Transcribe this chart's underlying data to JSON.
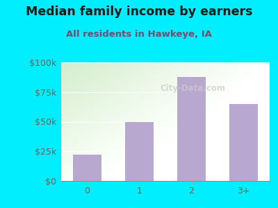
{
  "title": "Median family income by earners",
  "subtitle": "All residents in Hawkeye, IA",
  "categories": [
    "0",
    "1",
    "2",
    "3+"
  ],
  "values": [
    22000,
    50000,
    88000,
    65000
  ],
  "bar_color": "#b8a8d0",
  "background_outer": "#00eeff",
  "title_color": "#1a1a1a",
  "subtitle_color": "#7a4a6a",
  "tick_label_color": "#7a5a4a",
  "ylim": [
    0,
    100000
  ],
  "yticks": [
    0,
    25000,
    50000,
    75000,
    100000
  ],
  "ytick_labels": [
    "$0",
    "$25k",
    "$50k",
    "$75k",
    "$100k"
  ],
  "title_fontsize": 12.5,
  "subtitle_fontsize": 9.5,
  "watermark": "City-Data.com"
}
